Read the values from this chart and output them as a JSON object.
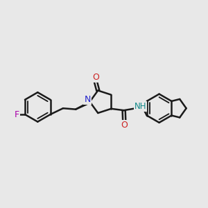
{
  "bg_color": "#e8e8e8",
  "bond_color": "#1a1a1a",
  "bond_width": 1.8,
  "N_color": "#2222cc",
  "O_color": "#cc2222",
  "F_color": "#aa00aa",
  "NH_color": "#118888",
  "figsize": [
    3.0,
    3.0
  ],
  "dpi": 100,
  "xlim": [
    0,
    10
  ],
  "ylim": [
    2,
    8
  ]
}
